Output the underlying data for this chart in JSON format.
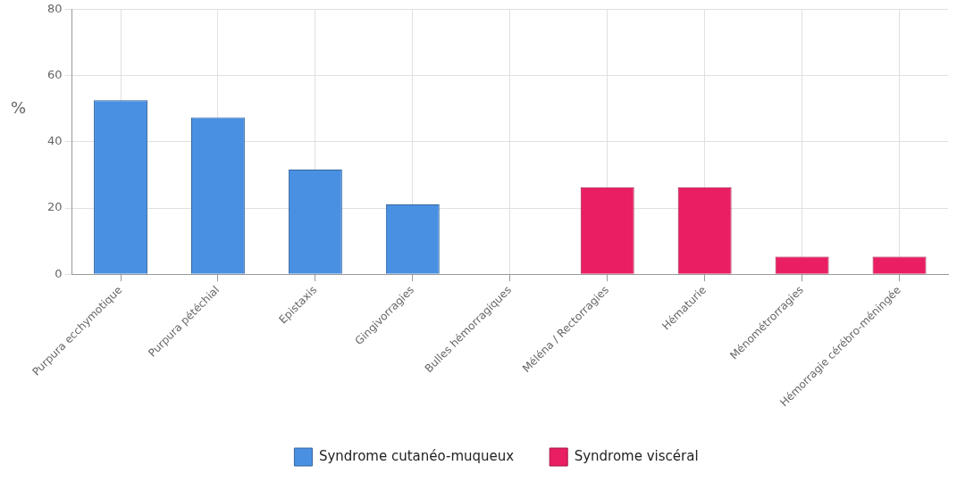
{
  "chart_data": {
    "type": "bar",
    "ylabel": "%",
    "categories": [
      "Purpura ecchymotique",
      "Purpura pétéchial",
      "Epistaxis",
      "Gingivorragies",
      "Bulles hémorragiques",
      "Méléna / Rectorragies",
      "Hématurie",
      "Ménométrorragies",
      "Hémorragie cérébro-méningée"
    ],
    "series": [
      {
        "name": "Syndrome cutanéo-muqueux",
        "color": "#4a90e2",
        "values": [
          52.6,
          47.4,
          31.6,
          21.1,
          0,
          null,
          null,
          null,
          null
        ]
      },
      {
        "name": "Syndrome viscéral",
        "color": "#e91e63",
        "values": [
          null,
          null,
          null,
          null,
          null,
          26.3,
          26.3,
          5.3,
          5.3
        ]
      }
    ],
    "ylim": [
      0,
      80
    ],
    "yticks": [
      0,
      20,
      40,
      60,
      80
    ],
    "grid": true,
    "legend": "bottom"
  }
}
